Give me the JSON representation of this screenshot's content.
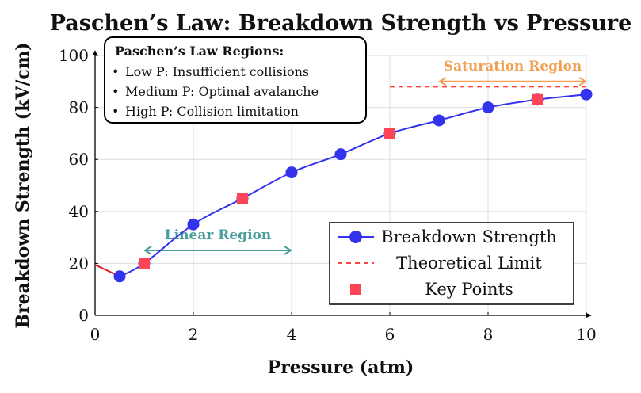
{
  "chart_data": {
    "type": "line",
    "title": "Paschen’s Law: Breakdown Strength vs Pressure",
    "xlabel": "Pressure (atm)",
    "ylabel": "Breakdown Strength (kV/cm)",
    "xlim": [
      0,
      10
    ],
    "ylim": [
      0,
      100
    ],
    "xticks": [
      "0",
      "2",
      "4",
      "6",
      "8",
      "10"
    ],
    "xtick_values": [
      0,
      2,
      4,
      6,
      8,
      10
    ],
    "yticks": [
      "0",
      "20",
      "40",
      "60",
      "80",
      "100"
    ],
    "ytick_values": [
      0,
      20,
      40,
      60,
      80,
      100
    ],
    "grid": true,
    "legend_position": "bottom-right",
    "series": [
      {
        "name": "Breakdown Strength",
        "color": "#3333ee",
        "marker": "circle",
        "x": [
          0.5,
          1,
          2,
          3,
          4,
          5,
          6,
          7,
          8,
          9,
          10
        ],
        "y": [
          15,
          20,
          35,
          45,
          55,
          62,
          70,
          75,
          80,
          83,
          85
        ]
      },
      {
        "name": "Theoretical Limit",
        "color": "#ff4444",
        "style": "dashed",
        "x": [
          6,
          10
        ],
        "y": [
          88,
          88
        ]
      },
      {
        "name": "Key Points",
        "color": "#ff4455",
        "marker": "square",
        "x": [
          1,
          3,
          6,
          9
        ],
        "y": [
          20,
          45,
          70,
          83
        ]
      }
    ],
    "low_pressure_segment": {
      "color": "#dd2222",
      "x": [
        0,
        0.5
      ],
      "y": [
        19.5,
        15
      ]
    },
    "annotations": [
      {
        "text": "Linear Region",
        "color": "#4a9e9e",
        "x_start": 1,
        "x_end": 4,
        "y": 25
      },
      {
        "text": "Saturation Region",
        "color": "#f0a050",
        "x_start": 7,
        "x_end": 10,
        "y": 90
      }
    ],
    "note_box": {
      "title": "Paschen’s Law Regions:",
      "bullet": "•",
      "items": [
        "Low P: Insufficient collisions",
        "Medium P: Optimal avalanche",
        "High P: Collision limitation"
      ]
    }
  }
}
